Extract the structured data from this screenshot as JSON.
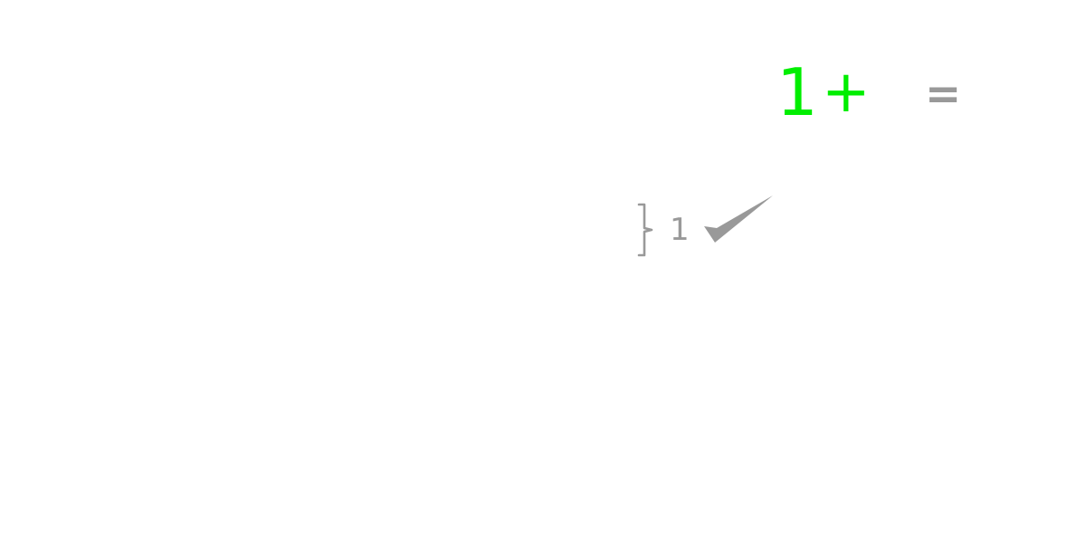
{
  "equation": {
    "term": "1",
    "operator": "+",
    "equals": "="
  },
  "tally": {
    "count": "1",
    "brace_icon": "right-brace-icon",
    "check_icon": "checkmark-icon"
  },
  "colors": {
    "equation": "#00ee00",
    "muted": "#999999"
  }
}
